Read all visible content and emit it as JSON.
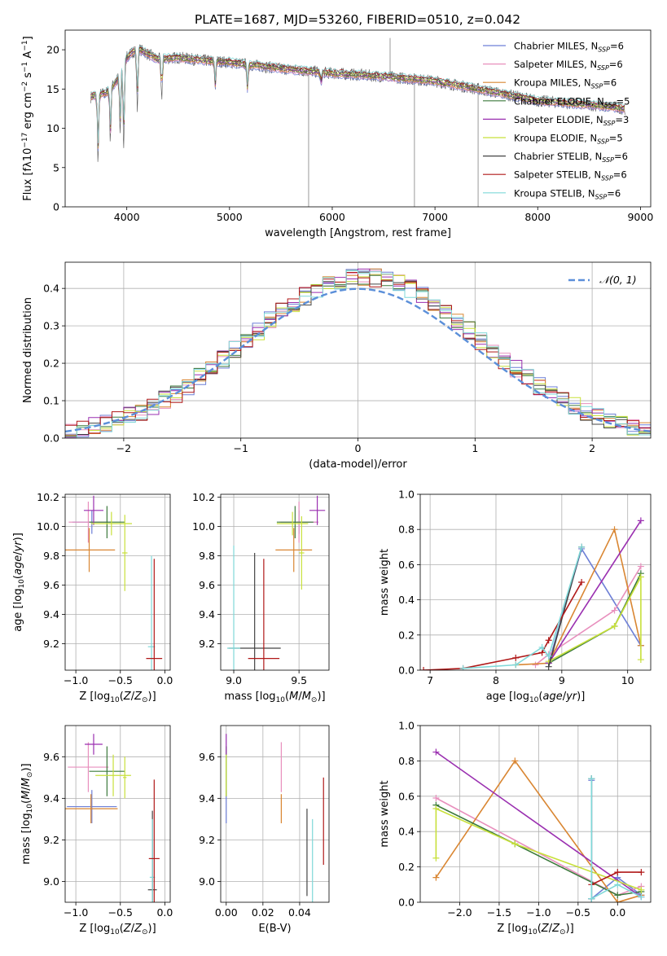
{
  "figure_title": "PLATE=1687, MJD=53260, FIBERID=0510, z=0.042",
  "legend_entries": [
    {
      "pre": "Chabrier MILES, N",
      "sub": "SSP",
      "post": "=6",
      "color": "#6d7fd6"
    },
    {
      "pre": "Salpeter MILES, N",
      "sub": "SSP",
      "post": "=6",
      "color": "#e88fbd"
    },
    {
      "pre": "Kroupa MILES, N",
      "sub": "SSP",
      "post": "=6",
      "color": "#d98632"
    },
    {
      "pre": "Chabrier ELODIE, N",
      "sub": "SSP",
      "post": "=5",
      "color": "#3c7a3c"
    },
    {
      "pre": "Salpeter ELODIE, N",
      "sub": "SSP",
      "post": "=3",
      "color": "#9a2fb0"
    },
    {
      "pre": "Kroupa ELODIE, N",
      "sub": "SSP",
      "post": "=5",
      "color": "#c8e03a"
    },
    {
      "pre": "Chabrier STELIB, N",
      "sub": "SSP",
      "post": "=6",
      "color": "#444444"
    },
    {
      "pre": "Salpeter STELIB, N",
      "sub": "SSP",
      "post": "=6",
      "color": "#b01818"
    },
    {
      "pre": "Kroupa STELIB, N",
      "sub": "SSP",
      "post": "=6",
      "color": "#7fd8d8"
    }
  ],
  "chart_data": [
    {
      "id": "spectrum",
      "type": "line",
      "xlabel": "wavelength [Angstrom, rest frame]",
      "ylabel": {
        "pre": "Flux [f",
        "lam": "λ",
        "mid": "10",
        "sup1": "−17",
        "post": " erg cm",
        "sup2": "−2",
        "mid2": " s",
        "sup3": "−1",
        "mid3": " A",
        "sup4": "−1",
        "end": "]"
      },
      "xlim": [
        3400,
        9100
      ],
      "ylim": [
        0,
        22.5
      ],
      "xticks": [
        4000,
        5000,
        6000,
        7000,
        8000,
        9000
      ],
      "yticks": [
        0,
        5,
        10,
        15,
        20
      ],
      "continuum": [
        [
          3650,
          14
        ],
        [
          3800,
          14.5
        ],
        [
          3900,
          16
        ],
        [
          4000,
          19
        ],
        [
          4100,
          20.2
        ],
        [
          4300,
          18.8
        ],
        [
          4500,
          19
        ],
        [
          4700,
          18.7
        ],
        [
          5000,
          18.4
        ],
        [
          5500,
          17.6
        ],
        [
          6000,
          17
        ],
        [
          6500,
          16.6
        ],
        [
          7000,
          16
        ],
        [
          7500,
          14.8
        ],
        [
          8000,
          13.5
        ],
        [
          8500,
          13
        ],
        [
          8850,
          12.5
        ]
      ],
      "absorption_lines": [
        [
          3720,
          6
        ],
        [
          3840,
          8.5
        ],
        [
          3935,
          9
        ],
        [
          3970,
          7
        ],
        [
          4102,
          12.5
        ],
        [
          4340,
          14
        ],
        [
          4861,
          15
        ],
        [
          5175,
          14.5
        ],
        [
          5890,
          15.5
        ]
      ],
      "spikes": [
        [
          5770,
          0
        ],
        [
          6563,
          21.5
        ],
        [
          6800,
          0
        ],
        [
          7420,
          0
        ]
      ],
      "observed": {
        "color": "#555555",
        "x_range": [
          3650,
          8850
        ]
      },
      "model_colors": [
        "#6d7fd6",
        "#e88fbd",
        "#d98632",
        "#3c7a3c",
        "#9a2fb0",
        "#c8e03a",
        "#444444",
        "#b01818",
        "#7fd8d8"
      ]
    },
    {
      "id": "residual_hist",
      "type": "histogram",
      "xlabel": "(data-model)/error",
      "ylabel": "Normed distribution",
      "xlim": [
        -2.5,
        2.5
      ],
      "ylim": [
        0,
        0.47
      ],
      "xticks": [
        -2,
        -1,
        0,
        1,
        2
      ],
      "yticks": [
        0.0,
        0.1,
        0.2,
        0.3,
        0.4
      ],
      "bin_width": 0.1,
      "reference": {
        "name": "𝒩(0, 1)",
        "mean": 0,
        "sigma": 1,
        "color": "#5b8fd9"
      },
      "series_colors": [
        "#6d7fd6",
        "#e88fbd",
        "#d98632",
        "#3c7a3c",
        "#9a2fb0",
        "#c8e03a",
        "#444444",
        "#b01818",
        "#7fd8d8"
      ]
    },
    {
      "id": "Z_age",
      "type": "errorbar",
      "xlabel": {
        "pre": "Z [log",
        "sub": "10",
        "mid": "(",
        "it": "Z",
        "mid2": "/",
        "it2": "Z",
        "sub2": "⊙",
        "end": ")]"
      },
      "ylabel": {
        "pre": "age  [log",
        "sub": "10",
        "mid": "(",
        "it": "age",
        "mid2": "/",
        "it2": "yr",
        "end": ")]"
      },
      "xlim": [
        -1.12,
        0.06
      ],
      "ylim": [
        9.02,
        10.22
      ],
      "xticks": [
        -1.0,
        -0.5,
        0.0
      ],
      "yticks": [
        9.2,
        9.4,
        9.6,
        9.8,
        10.0,
        10.2
      ],
      "points": [
        {
          "x": -0.82,
          "y": 10.03,
          "xerr": 0.22,
          "yerr": 0.08,
          "color": "#6d7fd6"
        },
        {
          "x": -0.86,
          "y": 10.03,
          "xerr": 0.22,
          "yerr": 0.14,
          "color": "#e88fbd"
        },
        {
          "x": -0.85,
          "y": 9.84,
          "xerr": 0.29,
          "yerr": 0.15,
          "color": "#d98632"
        },
        {
          "x": -0.65,
          "y": 10.03,
          "xerr": 0.2,
          "yerr": 0.11,
          "color": "#3c7a3c"
        },
        {
          "x": -0.8,
          "y": 10.11,
          "xerr": 0.11,
          "yerr": 0.1,
          "color": "#9a2fb0"
        },
        {
          "x": -0.6,
          "y": 10.02,
          "xerr": 0.23,
          "yerr": 0.08,
          "color": "#c8e03a"
        },
        {
          "x": -0.45,
          "y": 9.82,
          "xerr": 0.03,
          "yerr": 0.26,
          "color": "#c8e03a"
        },
        {
          "x": -0.15,
          "y": 9.18,
          "xerr": 0.04,
          "yerr": 0.62,
          "color": "#7fd8d8"
        },
        {
          "x": -0.12,
          "y": 9.1,
          "xerr": 0.09,
          "yerr": 0.68,
          "color": "#b01818"
        }
      ]
    },
    {
      "id": "mass_age",
      "type": "errorbar",
      "xlabel": {
        "pre": "mass [log",
        "sub": "10",
        "mid": "(",
        "it": "M",
        "mid2": "/",
        "it2": "M",
        "sub2": "⊙",
        "end": ")]"
      },
      "xlim": [
        8.9,
        9.73
      ],
      "ylim": [
        9.02,
        10.22
      ],
      "xticks": [
        9.0,
        9.5
      ],
      "yticks": [
        9.2,
        9.4,
        9.6,
        9.8,
        10.0,
        10.2
      ],
      "points": [
        {
          "x": 9.5,
          "y": 10.03,
          "xerr": 0.14,
          "yerr": 0.08,
          "color": "#6d7fd6"
        },
        {
          "x": 9.5,
          "y": 10.03,
          "xerr": 0.15,
          "yerr": 0.14,
          "color": "#e88fbd"
        },
        {
          "x": 9.46,
          "y": 9.84,
          "xerr": 0.14,
          "yerr": 0.15,
          "color": "#d98632"
        },
        {
          "x": 9.47,
          "y": 10.03,
          "xerr": 0.14,
          "yerr": 0.11,
          "color": "#3c7a3c"
        },
        {
          "x": 9.64,
          "y": 10.11,
          "xerr": 0.06,
          "yerr": 0.1,
          "color": "#9a2fb0"
        },
        {
          "x": 9.45,
          "y": 10.02,
          "xerr": 0.12,
          "yerr": 0.08,
          "color": "#c8e03a"
        },
        {
          "x": 9.52,
          "y": 9.82,
          "xerr": 0.02,
          "yerr": 0.25,
          "color": "#c8e03a"
        },
        {
          "x": 9.16,
          "y": 9.17,
          "xerr": 0.2,
          "yerr": 0.65,
          "color": "#444444"
        },
        {
          "x": 9.0,
          "y": 9.17,
          "xerr": 0.05,
          "yerr": 0.7,
          "color": "#7fd8d8"
        },
        {
          "x": 9.23,
          "y": 9.1,
          "xerr": 0.12,
          "yerr": 0.68,
          "color": "#b01818"
        }
      ]
    },
    {
      "id": "age_weight",
      "type": "line",
      "xlabel": {
        "pre": "age  [log",
        "sub": "10",
        "mid": "(",
        "it": "age",
        "mid2": "/",
        "it2": "yr",
        "end": ")]"
      },
      "ylabel": "mass weight",
      "xlim": [
        6.85,
        10.35
      ],
      "ylim": [
        0,
        1
      ],
      "xticks": [
        7,
        8,
        9,
        10
      ],
      "yticks": [
        0.0,
        0.2,
        0.4,
        0.6,
        0.8,
        1.0
      ],
      "series": [
        {
          "color": "#6d7fd6",
          "x": [
            8.8,
            9.3,
            10.2
          ],
          "y": [
            0.04,
            0.69,
            0.14
          ]
        },
        {
          "color": "#e88fbd",
          "x": [
            8.6,
            8.8,
            9.8,
            10.2
          ],
          "y": [
            0.03,
            0.09,
            0.34,
            0.59
          ]
        },
        {
          "color": "#d98632",
          "x": [
            8.3,
            8.8,
            9.8,
            10.2
          ],
          "y": [
            0.03,
            0.04,
            0.8,
            0.14
          ]
        },
        {
          "color": "#3c7a3c",
          "x": [
            8.8,
            9.8,
            10.2
          ],
          "y": [
            0.04,
            0.25,
            0.55
          ]
        },
        {
          "color": "#9a2fb0",
          "x": [
            8.8,
            10.2
          ],
          "y": [
            0.04,
            0.85
          ]
        },
        {
          "color": "#c8e03a",
          "x": [
            8.8,
            9.8,
            10.2,
            10.2
          ],
          "y": [
            0.05,
            0.25,
            0.53,
            0.06
          ]
        },
        {
          "color": "#444444",
          "x": [
            8.8,
            9.3
          ],
          "y": [
            0.02,
            0.7
          ]
        },
        {
          "color": "#b01818",
          "x": [
            6.9,
            7.5,
            8.3,
            8.7,
            8.8,
            9.3
          ],
          "y": [
            0.0,
            0.01,
            0.07,
            0.1,
            0.17,
            0.5
          ]
        },
        {
          "color": "#7fd8d8",
          "x": [
            7.5,
            8.3,
            8.7,
            8.8,
            9.3
          ],
          "y": [
            0.01,
            0.03,
            0.13,
            0.08,
            0.7
          ]
        }
      ]
    },
    {
      "id": "Z_mass",
      "type": "errorbar",
      "xlabel": {
        "pre": "Z [log",
        "sub": "10",
        "mid": "(",
        "it": "Z",
        "mid2": "/",
        "it2": "Z",
        "sub2": "⊙",
        "end": ")]"
      },
      "ylabel": {
        "pre": "mass [log",
        "sub": "10",
        "mid": "(",
        "it": "M",
        "mid2": "/",
        "it2": "M",
        "sub2": "⊙",
        "end": ")]"
      },
      "xlim": [
        -1.12,
        0.06
      ],
      "ylim": [
        8.9,
        9.75
      ],
      "xticks": [
        -1.0,
        -0.5,
        0.0
      ],
      "yticks": [
        9.0,
        9.2,
        9.4,
        9.6
      ],
      "points": [
        {
          "x": -0.82,
          "y": 9.36,
          "xerr": 0.28,
          "yerr": 0.08,
          "color": "#6d7fd6"
        },
        {
          "x": -0.86,
          "y": 9.55,
          "xerr": 0.23,
          "yerr": 0.12,
          "color": "#e88fbd"
        },
        {
          "x": -0.83,
          "y": 9.35,
          "xerr": 0.3,
          "yerr": 0.07,
          "color": "#d98632"
        },
        {
          "x": -0.65,
          "y": 9.53,
          "xerr": 0.2,
          "yerr": 0.12,
          "color": "#3c7a3c"
        },
        {
          "x": -0.8,
          "y": 9.66,
          "xerr": 0.1,
          "yerr": 0.05,
          "color": "#9a2fb0"
        },
        {
          "x": -0.58,
          "y": 9.51,
          "xerr": 0.2,
          "yerr": 0.1,
          "color": "#c8e03a"
        },
        {
          "x": -0.45,
          "y": 9.5,
          "xerr": 0.02,
          "yerr": 0.1,
          "color": "#c8e03a"
        },
        {
          "x": -0.14,
          "y": 8.96,
          "xerr": 0.05,
          "yerr": 0.38,
          "color": "#444444"
        },
        {
          "x": -0.14,
          "y": 9.02,
          "xerr": 0.03,
          "yerr": 0.28,
          "color": "#7fd8d8"
        },
        {
          "x": -0.12,
          "y": 9.11,
          "xerr": 0.06,
          "yerr": 0.38,
          "color": "#b01818"
        }
      ]
    },
    {
      "id": "ebv_mass",
      "type": "errorbar",
      "xlabel": "E(B-V)",
      "xlim": [
        -0.003,
        0.056
      ],
      "ylim": [
        8.9,
        9.75
      ],
      "xticks": [
        0.0,
        0.02,
        0.04
      ],
      "yticks": [
        9.0,
        9.2,
        9.4,
        9.6
      ],
      "points": [
        {
          "x": 0.0,
          "y": 9.36,
          "xerr": 0,
          "yerr": 0.08,
          "color": "#6d7fd6"
        },
        {
          "x": 0.03,
          "y": 9.55,
          "xerr": 0,
          "yerr": 0.12,
          "color": "#e88fbd"
        },
        {
          "x": 0.03,
          "y": 9.35,
          "xerr": 0,
          "yerr": 0.07,
          "color": "#d98632"
        },
        {
          "x": 0.0,
          "y": 9.53,
          "xerr": 0,
          "yerr": 0.12,
          "color": "#3c7a3c"
        },
        {
          "x": 0.0,
          "y": 9.66,
          "xerr": 0,
          "yerr": 0.05,
          "color": "#9a2fb0"
        },
        {
          "x": 0.0,
          "y": 9.51,
          "xerr": 0,
          "yerr": 0.1,
          "color": "#c8e03a"
        },
        {
          "x": 0.044,
          "y": 9.14,
          "xerr": 0,
          "yerr": 0.21,
          "color": "#444444"
        },
        {
          "x": 0.047,
          "y": 9.02,
          "xerr": 0,
          "yerr": 0.28,
          "color": "#7fd8d8"
        },
        {
          "x": 0.053,
          "y": 9.29,
          "xerr": 0,
          "yerr": 0.21,
          "color": "#b01818"
        }
      ]
    },
    {
      "id": "Z_weight",
      "type": "line",
      "xlabel": {
        "pre": "Z [log",
        "sub": "10",
        "mid": "(",
        "it": "Z",
        "mid2": "/",
        "it2": "Z",
        "sub2": "⊙",
        "end": ")]"
      },
      "ylabel": "mass weight",
      "xlim": [
        -2.5,
        0.42
      ],
      "ylim": [
        0,
        1
      ],
      "xticks": [
        -2.0,
        -1.5,
        -1.0,
        -0.5,
        0.0
      ],
      "yticks": [
        0.0,
        0.2,
        0.4,
        0.6,
        0.8,
        1.0
      ],
      "series": [
        {
          "color": "#6d7fd6",
          "x": [
            -0.33,
            -0.33,
            0.0,
            0.3
          ],
          "y": [
            0.69,
            0.02,
            0.14,
            0.04
          ]
        },
        {
          "color": "#e88fbd",
          "x": [
            -2.3,
            0.0,
            0.3
          ],
          "y": [
            0.59,
            0.04,
            0.09
          ]
        },
        {
          "color": "#d98632",
          "x": [
            -2.3,
            -1.3,
            0.0,
            0.3
          ],
          "y": [
            0.14,
            0.8,
            0.0,
            0.04
          ]
        },
        {
          "color": "#3c7a3c",
          "x": [
            -2.3,
            -1.3,
            0.0,
            0.3
          ],
          "y": [
            0.55,
            0.33,
            0.04,
            0.06
          ]
        },
        {
          "color": "#9a2fb0",
          "x": [
            -2.3,
            0.3
          ],
          "y": [
            0.85,
            0.03
          ]
        },
        {
          "color": "#c8e03a",
          "x": [
            -2.3,
            -2.3,
            -1.3,
            0.3
          ],
          "y": [
            0.25,
            0.53,
            0.33,
            0.07
          ]
        },
        {
          "color": "#444444",
          "x": [
            -0.33,
            -0.33
          ],
          "y": [
            0.7,
            0.02
          ]
        },
        {
          "color": "#b01818",
          "x": [
            -0.33,
            0.0,
            0.3
          ],
          "y": [
            0.1,
            0.17,
            0.17
          ]
        },
        {
          "color": "#7fd8d8",
          "x": [
            -0.33,
            -0.33,
            0.0,
            0.3
          ],
          "y": [
            0.7,
            0.02,
            0.1,
            0.03
          ]
        }
      ]
    }
  ]
}
